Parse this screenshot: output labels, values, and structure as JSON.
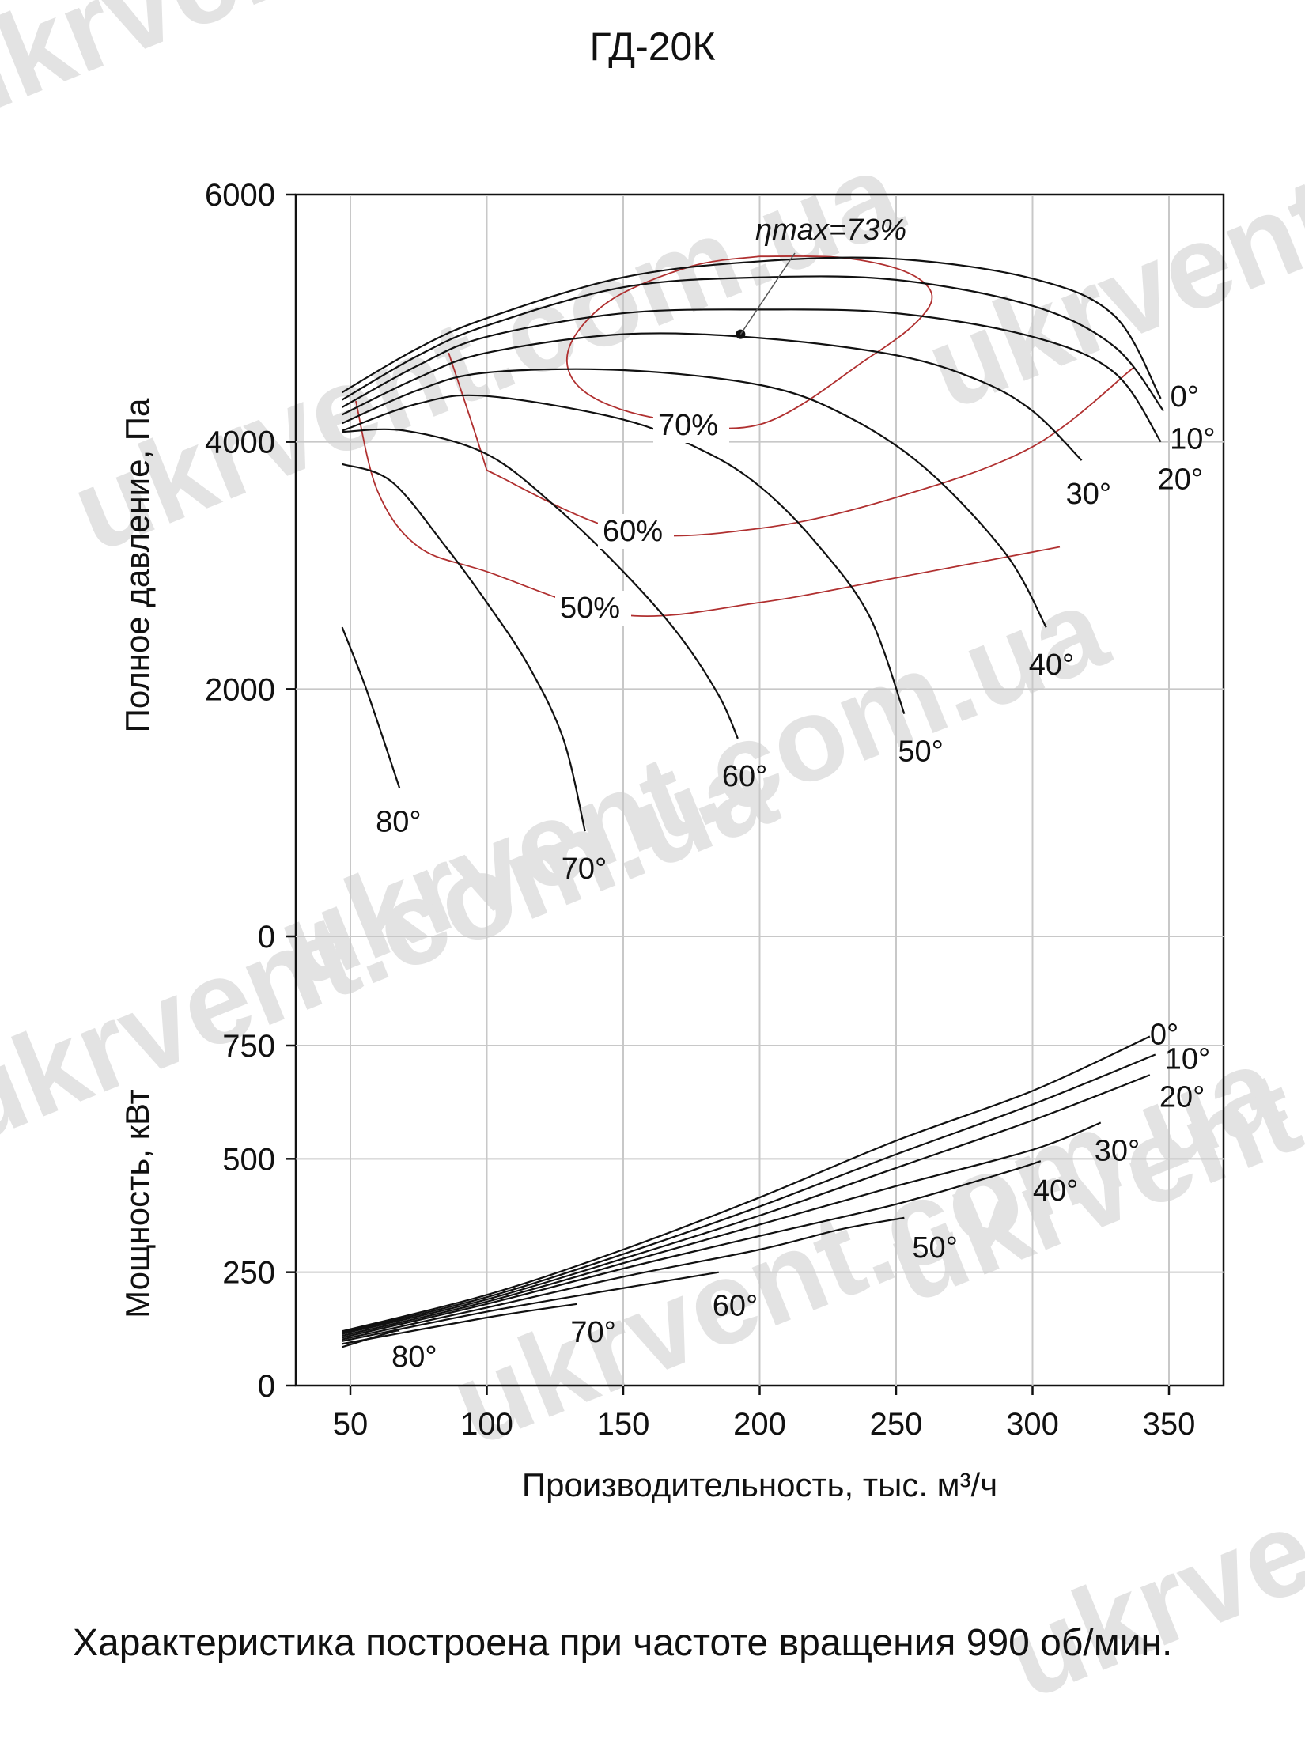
{
  "title": "ГД-20К",
  "caption": "Характеристика построена при частоте вращения 990 об/мин.",
  "watermark": "ukrvent.com.ua",
  "colors": {
    "curve": "#111111",
    "efficiency": "#b03030",
    "grid": "#c8c8c8",
    "watermark": "#e3e3e3"
  },
  "chart_data": [
    {
      "type": "line",
      "xlabel": "Производительность, тыс. м³/ч",
      "ylabel": "Полное давление, Па",
      "xlim": [
        30,
        370
      ],
      "ylim": [
        0,
        6000
      ],
      "xticks": [
        50,
        100,
        150,
        200,
        250,
        300,
        350
      ],
      "yticks": [
        0,
        2000,
        4000,
        6000
      ],
      "grid": true,
      "series": [
        {
          "name": "0°",
          "x": [
            47,
            75,
            100,
            150,
            200,
            250,
            300,
            330,
            347
          ],
          "y": [
            4400,
            4760,
            5000,
            5330,
            5460,
            5480,
            5320,
            5020,
            4350
          ]
        },
        {
          "name": "10°",
          "x": [
            47,
            75,
            100,
            150,
            200,
            250,
            300,
            330,
            348
          ],
          "y": [
            4340,
            4700,
            4940,
            5250,
            5330,
            5310,
            5100,
            4770,
            4250
          ]
        },
        {
          "name": "20°",
          "x": [
            47,
            75,
            100,
            150,
            200,
            250,
            300,
            330,
            347
          ],
          "y": [
            4280,
            4620,
            4850,
            5040,
            5070,
            5040,
            4850,
            4560,
            4000
          ]
        },
        {
          "name": "30°",
          "x": [
            47,
            75,
            100,
            150,
            200,
            250,
            280,
            300,
            318
          ],
          "y": [
            4220,
            4520,
            4720,
            4870,
            4840,
            4700,
            4500,
            4250,
            3850
          ]
        },
        {
          "name": "40°",
          "x": [
            47,
            75,
            100,
            150,
            200,
            230,
            260,
            290,
            305
          ],
          "y": [
            4150,
            4420,
            4560,
            4580,
            4460,
            4230,
            3800,
            3100,
            2500
          ]
        },
        {
          "name": "50°",
          "x": [
            47,
            75,
            100,
            150,
            180,
            200,
            220,
            240,
            253
          ],
          "y": [
            4090,
            4310,
            4370,
            4180,
            3920,
            3640,
            3200,
            2600,
            1800
          ]
        },
        {
          "name": "60°",
          "x": [
            47,
            70,
            100,
            125,
            150,
            170,
            185,
            192
          ],
          "y": [
            4080,
            4090,
            3900,
            3480,
            2950,
            2450,
            1950,
            1600
          ]
        },
        {
          "name": "70°",
          "x": [
            47,
            65,
            85,
            100,
            115,
            128,
            136
          ],
          "y": [
            3820,
            3680,
            3150,
            2700,
            2200,
            1600,
            850
          ]
        },
        {
          "name": "80°",
          "x": [
            47,
            55,
            62,
            68
          ],
          "y": [
            2500,
            2050,
            1600,
            1200
          ]
        }
      ],
      "annotations": [
        {
          "text": "ηmax=73%",
          "x": 193,
          "y": 4870
        },
        {
          "text": "70%"
        },
        {
          "text": "60%"
        },
        {
          "text": "50%"
        }
      ],
      "efficiency_contours": [
        {
          "name": "70%",
          "x": [
            200,
            230,
            253,
            263,
            258,
            240,
            200,
            160,
            135,
            130,
            145,
            175,
            200
          ],
          "y": [
            5500,
            5490,
            5380,
            5200,
            4980,
            4680,
            4140,
            4200,
            4420,
            4750,
            5140,
            5420,
            5500
          ]
        },
        {
          "name": "60%",
          "x": [
            100,
            150,
            200,
            250,
            300,
            337
          ],
          "y": [
            3770,
            3280,
            3300,
            3550,
            3960,
            4600
          ]
        },
        {
          "name": "60%",
          "x": [
            86,
            95,
            100
          ],
          "y": [
            4720,
            4120,
            3770
          ]
        },
        {
          "name": "50%",
          "x": [
            52,
            60,
            75,
            100,
            150,
            200,
            250,
            310
          ],
          "y": [
            4330,
            3600,
            3150,
            2950,
            2600,
            2700,
            2900,
            3150
          ]
        }
      ]
    },
    {
      "type": "line",
      "xlabel": "Производительность, тыс. м³/ч",
      "ylabel": "Мощность, кВт",
      "xlim": [
        30,
        370
      ],
      "ylim": [
        0,
        750
      ],
      "xticks": [
        50,
        100,
        150,
        200,
        250,
        300,
        350
      ],
      "yticks": [
        0,
        250,
        500,
        750
      ],
      "grid": true,
      "series": [
        {
          "name": "0°",
          "x": [
            47,
            100,
            150,
            200,
            250,
            300,
            343
          ],
          "y": [
            120,
            200,
            300,
            415,
            540,
            650,
            770
          ]
        },
        {
          "name": "10°",
          "x": [
            47,
            100,
            150,
            200,
            250,
            300,
            345
          ],
          "y": [
            117,
            195,
            290,
            395,
            510,
            620,
            730
          ]
        },
        {
          "name": "20°",
          "x": [
            47,
            100,
            150,
            200,
            250,
            300,
            343
          ],
          "y": [
            114,
            190,
            280,
            375,
            480,
            585,
            685
          ]
        },
        {
          "name": "30°",
          "x": [
            47,
            100,
            150,
            200,
            250,
            300,
            325
          ],
          "y": [
            110,
            185,
            270,
            355,
            440,
            520,
            580
          ]
        },
        {
          "name": "40°",
          "x": [
            47,
            100,
            150,
            200,
            250,
            290,
            303
          ],
          "y": [
            106,
            180,
            258,
            330,
            400,
            470,
            495
          ]
        },
        {
          "name": "50°",
          "x": [
            47,
            100,
            150,
            200,
            230,
            253
          ],
          "y": [
            102,
            172,
            240,
            300,
            345,
            370
          ]
        },
        {
          "name": "60°",
          "x": [
            47,
            100,
            150,
            185
          ],
          "y": [
            98,
            163,
            215,
            250
          ]
        },
        {
          "name": "70°",
          "x": [
            47,
            100,
            133
          ],
          "y": [
            92,
            150,
            180
          ]
        },
        {
          "name": "80°",
          "x": [
            47,
            65,
            68
          ],
          "y": [
            85,
            118,
            120
          ]
        }
      ]
    }
  ]
}
